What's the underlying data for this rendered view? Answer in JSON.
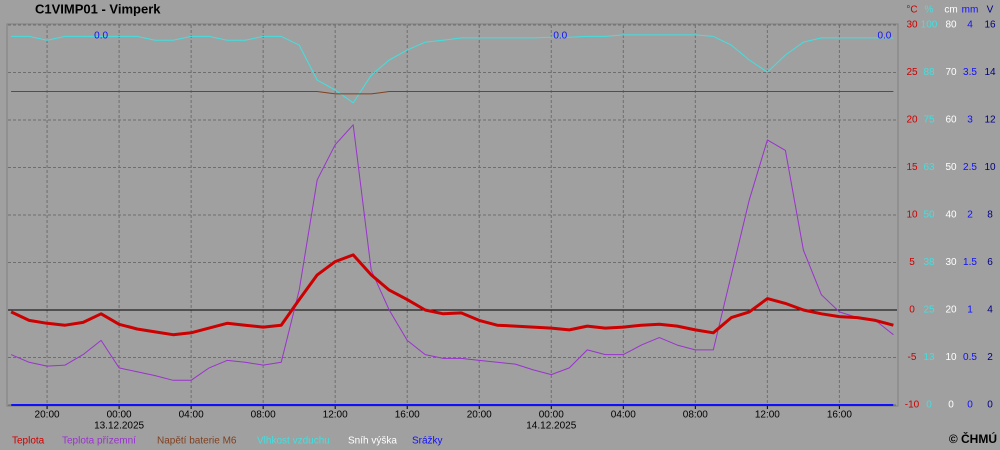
{
  "chart_data": {
    "type": "line",
    "title": "C1VIMP01 - Vimperk",
    "xlim": [
      -6.17,
      43.2
    ],
    "xticks": [
      {
        "value": -4,
        "label": "20:00"
      },
      {
        "value": 0,
        "label": "00:00"
      },
      {
        "value": 4,
        "label": "04:00"
      },
      {
        "value": 8,
        "label": "08:00"
      },
      {
        "value": 12,
        "label": "12:00"
      },
      {
        "value": 16,
        "label": "16:00"
      },
      {
        "value": 20,
        "label": "20:00"
      },
      {
        "value": 24,
        "label": "00:00"
      },
      {
        "value": 28,
        "label": "04:00"
      },
      {
        "value": 32,
        "label": "08:00"
      },
      {
        "value": 36,
        "label": "12:00"
      },
      {
        "value": 40,
        "label": "16:00"
      }
    ],
    "dates": [
      {
        "x": 0,
        "label": "13.12.2025"
      },
      {
        "x": 24,
        "label": "14.12.2025"
      }
    ],
    "annotations": [
      {
        "x": -1,
        "text": "0.0"
      },
      {
        "x": 24.5,
        "text": "0.0"
      },
      {
        "x": 42.5,
        "text": "0.0"
      }
    ],
    "grid": true,
    "axes": [
      {
        "unit": "°C",
        "color": "#cc0000",
        "lim": [
          -10,
          30
        ],
        "ticks": [
          30,
          25,
          20,
          15,
          10,
          5,
          0,
          -5,
          -10
        ]
      },
      {
        "unit": "%",
        "color": "#40e0e0",
        "lim": [
          0,
          100
        ],
        "ticks": [
          100,
          {
            "value": 87.5,
            "label": "88"
          },
          75,
          {
            "value": 62.5,
            "label": "63"
          },
          50,
          {
            "value": 37.5,
            "label": "38"
          },
          25,
          {
            "value": 12.5,
            "label": "13"
          },
          0
        ]
      },
      {
        "unit": "cm",
        "color": "#ffffff",
        "lim": [
          0,
          80
        ],
        "ticks": [
          80,
          70,
          60,
          50,
          40,
          30,
          20,
          10,
          0
        ]
      },
      {
        "unit": "mm",
        "color": "#1010ff",
        "lim": [
          0,
          4
        ],
        "ticks": [
          4,
          3.5,
          3,
          2.5,
          2,
          1.5,
          1,
          0.5,
          0
        ]
      },
      {
        "unit": "V",
        "color": "#000080",
        "lim": [
          0,
          16
        ],
        "ticks": [
          16,
          14,
          12,
          10,
          8,
          6,
          4,
          2,
          0
        ]
      }
    ],
    "x": [
      -6,
      -5,
      -4,
      -3,
      -2,
      -1,
      0,
      1,
      2,
      3,
      4,
      5,
      6,
      7,
      8,
      9,
      10,
      11,
      12,
      13,
      14,
      15,
      16,
      17,
      18,
      19,
      20,
      21,
      22,
      23,
      24,
      25,
      26,
      27,
      28,
      29,
      30,
      31,
      32,
      33,
      34,
      35,
      36,
      37,
      38,
      39,
      40,
      41,
      42,
      43
    ],
    "series": [
      {
        "name": "Vlhkost vzduchu",
        "color": "#40e0e0",
        "axis": 1,
        "line_width": 1,
        "values": [
          97,
          97,
          96,
          97,
          97,
          97,
          97,
          97,
          96,
          96,
          97,
          97,
          96,
          96,
          97,
          97,
          94.7,
          85.5,
          82.9,
          79.5,
          86.8,
          90.8,
          93.4,
          95.5,
          96,
          96.6,
          96.6,
          96.6,
          96.6,
          96.6,
          96.8,
          96.8,
          97,
          97,
          97.4,
          97.4,
          97.4,
          97.4,
          97.4,
          97,
          94.7,
          90.8,
          87.6,
          92.1,
          95.5,
          96.6,
          96.6,
          96.6,
          96.6,
          96.6
        ]
      },
      {
        "name": "Napětí baterie M6",
        "color": "#804020",
        "axis": 4,
        "line_width": 1,
        "values": [
          13.2,
          13.2,
          13.2,
          13.2,
          13.2,
          13.2,
          13.2,
          13.2,
          13.2,
          13.2,
          13.2,
          13.2,
          13.2,
          13.2,
          13.2,
          13.2,
          13.2,
          13.2,
          13.1,
          13.1,
          13.1,
          13.2,
          13.2,
          13.2,
          13.2,
          13.2,
          13.2,
          13.2,
          13.2,
          13.2,
          13.2,
          13.2,
          13.2,
          13.2,
          13.2,
          13.2,
          13.2,
          13.2,
          13.2,
          13.2,
          13.2,
          13.2,
          13.2,
          13.2,
          13.2,
          13.2,
          13.2,
          13.2,
          13.2,
          13.2
        ]
      },
      {
        "name": "Teplota přízemní",
        "color": "#9933cc",
        "axis": 0,
        "line_width": 1,
        "values": [
          -4.7,
          -5.5,
          -5.9,
          -5.8,
          -4.7,
          -3.2,
          -6.1,
          -6.5,
          -6.9,
          -7.4,
          -7.4,
          -6.1,
          -5.3,
          -5.5,
          -5.8,
          -5.5,
          2.1,
          13.7,
          17.4,
          19.5,
          4.2,
          0,
          -3.2,
          -4.7,
          -5.1,
          -5.1,
          -5.3,
          -5.5,
          -5.7,
          -6.3,
          -6.8,
          -6.1,
          -4.2,
          -4.7,
          -4.7,
          -3.7,
          -2.9,
          -3.7,
          -4.2,
          -4.2,
          3.7,
          11.6,
          17.9,
          16.8,
          6.3,
          1.6,
          -0.2,
          -0.8,
          -1.1,
          -2.6
        ]
      },
      {
        "name": "Teplota",
        "color": "#cc0000",
        "axis": 0,
        "line_width": 3,
        "values": [
          -0.2,
          -1.1,
          -1.4,
          -1.6,
          -1.3,
          -0.4,
          -1.5,
          -2,
          -2.3,
          -2.6,
          -2.4,
          -1.9,
          -1.4,
          -1.6,
          -1.8,
          -1.6,
          1.1,
          3.7,
          5.1,
          5.8,
          3.7,
          2.1,
          1.1,
          0,
          -0.4,
          -0.3,
          -1.1,
          -1.6,
          -1.7,
          -1.8,
          -1.9,
          -2.1,
          -1.7,
          -1.9,
          -1.8,
          -1.6,
          -1.5,
          -1.7,
          -2.1,
          -2.4,
          -0.8,
          -0.2,
          1.2,
          0.7,
          0,
          -0.4,
          -0.7,
          -0.8,
          -1.1,
          -1.6
        ]
      },
      {
        "name": "Sníh výška",
        "color": "#ffffff",
        "axis": 2,
        "line_width": 2,
        "values": [
          0,
          0,
          0,
          0,
          0,
          0,
          0,
          0,
          0,
          0,
          0,
          0,
          0,
          0,
          0,
          0,
          0,
          0,
          0,
          0,
          0,
          0,
          0,
          0,
          0,
          0,
          0,
          0,
          0,
          0,
          0,
          0,
          0,
          0,
          0,
          0,
          0,
          0,
          0,
          0,
          0,
          0,
          0,
          0,
          0,
          0,
          0,
          0,
          0,
          0
        ]
      },
      {
        "name": "Srážky",
        "color": "#1010ff",
        "axis": 3,
        "line_width": 2,
        "values": [
          0,
          0,
          0,
          0,
          0,
          0,
          0,
          0,
          0,
          0,
          0,
          0,
          0,
          0,
          0,
          0,
          0,
          0,
          0,
          0,
          0,
          0,
          0,
          0,
          0,
          0,
          0,
          0,
          0,
          0,
          0,
          0,
          0,
          0,
          0,
          0,
          0,
          0,
          0,
          0,
          0,
          0,
          0,
          0,
          0,
          0,
          0,
          0,
          0,
          0
        ]
      }
    ],
    "legend_order": [
      3,
      2,
      1,
      0,
      4,
      5
    ],
    "copyright": "© ČHMÚ"
  }
}
